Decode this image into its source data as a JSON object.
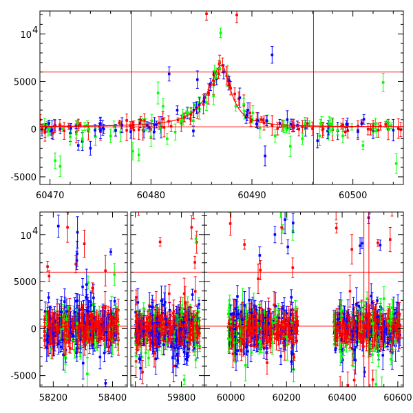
{
  "chart_data": [
    {
      "type": "scatter",
      "panel": "top",
      "xlim": [
        60469,
        60505
      ],
      "ylim": [
        -5800,
        12400
      ],
      "x_ticks": [
        60470,
        60480,
        60490,
        60500
      ],
      "y_ticks": [
        -5000,
        0,
        5000
      ],
      "y_tick_sup": {
        "mantissa": "10",
        "exponent": "4",
        "value": 10000
      },
      "grid": false,
      "legend": "none",
      "hlines": [
        6000,
        250
      ],
      "vlines": [
        60478.1,
        60496.1
      ],
      "model_curve": {
        "peak_x": 60487.0,
        "peak_y": 6700,
        "baseline": 250,
        "width_left": 1.6,
        "width_right": 1.1
      },
      "series": [
        {
          "color": "#ff0000",
          "points": [
            [
              60469.5,
              -350
            ],
            [
              60470.3,
              -420
            ],
            [
              60471.4,
              -180
            ],
            [
              60472.6,
              -290
            ],
            [
              60473.8,
              -200
            ],
            [
              60475.0,
              -240
            ],
            [
              60476.5,
              -150
            ],
            [
              60477.6,
              -120
            ],
            [
              60478.3,
              -80
            ],
            [
              60479.2,
              -100
            ],
            [
              60480.0,
              -20
            ],
            [
              60480.8,
              650
            ],
            [
              60481.3,
              200
            ],
            [
              60482.0,
              300
            ],
            [
              60483.0,
              620
            ],
            [
              60483.9,
              1100
            ],
            [
              60484.6,
              1700
            ],
            [
              60485.2,
              2600
            ],
            [
              60485.7,
              3700
            ],
            [
              60486.2,
              4700
            ],
            [
              60486.7,
              5800
            ],
            [
              60487.1,
              6700
            ],
            [
              60487.5,
              5600
            ],
            [
              60487.9,
              4300
            ],
            [
              60488.3,
              3700
            ],
            [
              60488.7,
              3200
            ],
            [
              60489.2,
              2500
            ],
            [
              60489.8,
              1700
            ],
            [
              60490.5,
              1000
            ],
            [
              60491.2,
              650
            ],
            [
              60492.0,
              400
            ],
            [
              60493.0,
              350
            ],
            [
              60494.0,
              300
            ],
            [
              60495.0,
              250
            ],
            [
              60496.0,
              50
            ],
            [
              60497.0,
              -80
            ],
            [
              60498.0,
              -60
            ],
            [
              60499.5,
              -150
            ],
            [
              60500.5,
              -100
            ],
            [
              60501.5,
              0
            ],
            [
              60502.5,
              -100
            ],
            [
              60503.5,
              -30
            ],
            [
              60504.5,
              60
            ],
            [
              60485.5,
              12100
            ],
            [
              60488.5,
              12000
            ],
            [
              60478.8,
              -40
            ]
          ]
        },
        {
          "color": "#0000ff",
          "points": [
            [
              60470.2,
              -60
            ],
            [
              60471.0,
              40
            ],
            [
              60472.0,
              -420
            ],
            [
              60472.8,
              -1700
            ],
            [
              60473.2,
              -1300
            ],
            [
              60474.0,
              -2000
            ],
            [
              60475.0,
              -50
            ],
            [
              60476.5,
              -120
            ],
            [
              60478.0,
              -250
            ],
            [
              60479.3,
              -200
            ],
            [
              60480.3,
              -300
            ],
            [
              60481.0,
              200
            ],
            [
              60481.8,
              5800
            ],
            [
              60482.6,
              2000
            ],
            [
              60483.6,
              1700
            ],
            [
              60484.2,
              -200
            ],
            [
              60484.6,
              5200
            ],
            [
              60485.3,
              3300
            ],
            [
              60485.9,
              4700
            ],
            [
              60486.5,
              5300
            ],
            [
              60487.2,
              6000
            ],
            [
              60487.7,
              4700
            ],
            [
              60488.8,
              3300
            ],
            [
              60489.6,
              2000
            ],
            [
              60490.6,
              900
            ],
            [
              60491.3,
              -2800
            ],
            [
              60492.0,
              7800
            ],
            [
              60493.5,
              1000
            ],
            [
              60494.5,
              400
            ],
            [
              60495.3,
              100
            ],
            [
              60496.5,
              -1200
            ],
            [
              60497.5,
              -200
            ],
            [
              60498.5,
              -180
            ],
            [
              60500.5,
              -250
            ],
            [
              60502.0,
              -200
            ],
            [
              60504.0,
              -100
            ]
          ]
        },
        {
          "color": "#00ff00",
          "points": [
            [
              60469.8,
              -150
            ],
            [
              60470.5,
              -3300
            ],
            [
              60471.0,
              -3900
            ],
            [
              60472.0,
              -800
            ],
            [
              60472.6,
              -500
            ],
            [
              60473.2,
              -1000
            ],
            [
              60474.5,
              -800
            ],
            [
              60476.0,
              -700
            ],
            [
              60477.0,
              -300
            ],
            [
              60478.2,
              -2300
            ],
            [
              60478.8,
              -2700
            ],
            [
              60480.0,
              -800
            ],
            [
              60480.7,
              3800
            ],
            [
              60481.2,
              2400
            ],
            [
              60481.6,
              -1000
            ],
            [
              60482.4,
              -300
            ],
            [
              60484.2,
              900
            ],
            [
              60484.8,
              2100
            ],
            [
              60485.5,
              2800
            ],
            [
              60486.2,
              3500
            ],
            [
              60486.9,
              10100
            ],
            [
              60487.6,
              5600
            ],
            [
              60488.4,
              2400
            ],
            [
              60489.2,
              2600
            ],
            [
              60490.1,
              1700
            ],
            [
              60490.8,
              100
            ],
            [
              60492.3,
              -700
            ],
            [
              60493.8,
              -1800
            ],
            [
              60495.0,
              -1000
            ],
            [
              60496.7,
              -700
            ],
            [
              60497.6,
              -400
            ],
            [
              60499.0,
              -700
            ],
            [
              60501.0,
              -1700
            ],
            [
              60502.3,
              -200
            ],
            [
              60503.0,
              4900
            ],
            [
              60504.3,
              -3600
            ]
          ]
        }
      ]
    },
    {
      "type": "scatter",
      "panel": "bottom",
      "segments": [
        {
          "xlim": [
            58155,
            58450
          ],
          "x_ticks": [
            58200,
            58400
          ],
          "data_x_range": [
            58170,
            58420
          ]
        },
        {
          "xlim": [
            59580,
            59900
          ],
          "x_ticks": [
            59800
          ],
          "data_x_range": [
            59600,
            59880
          ]
        },
        {
          "xlim": [
            59905,
            60620
          ],
          "x_ticks": [
            60000,
            60200,
            60400,
            60600
          ],
          "data_x_range": [
            [
              59990,
              60240
            ],
            [
              60370,
              60610
            ]
          ]
        }
      ],
      "ylim": [
        -6200,
        12400
      ],
      "y_ticks": [
        -5000,
        0,
        5000
      ],
      "y_tick_sup": {
        "mantissa": "10",
        "exponent": "4",
        "value": 10000
      },
      "grid": false,
      "legend": "none",
      "hlines": [
        6000,
        250
      ],
      "vlines": [
        60478.1,
        60496.1
      ],
      "series_colors": [
        "#ff0000",
        "#0000ff",
        "#00ff00"
      ],
      "typical_scatter": {
        "center": 0,
        "spread": 1000,
        "outlier_max": 12000,
        "outlier_min": -6000
      }
    }
  ]
}
